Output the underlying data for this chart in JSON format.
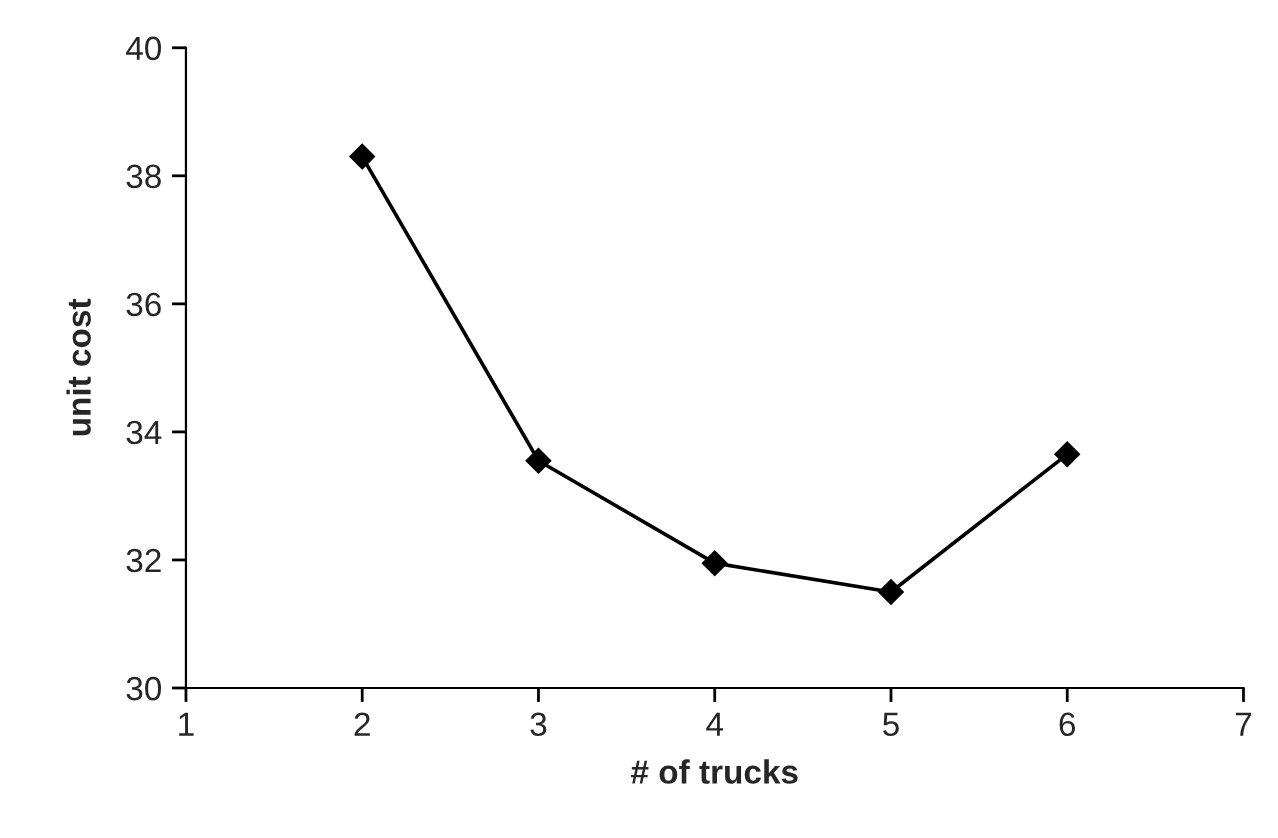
{
  "chart_data": {
    "type": "line",
    "xlabel": "# of trucks",
    "ylabel": "unit cost",
    "x": [
      2,
      3,
      4,
      5,
      6
    ],
    "series": [
      {
        "color": "#000000",
        "values": [
          38.3,
          33.55,
          31.95,
          31.5,
          33.65
        ]
      }
    ],
    "xlim": [
      1,
      7
    ],
    "xticks": [
      1,
      2,
      3,
      4,
      5,
      6,
      7
    ],
    "ylim": [
      30,
      40
    ],
    "yticks": [
      30,
      32,
      34,
      36,
      38,
      40
    ],
    "grid": false,
    "legend": false,
    "marker": "diamond",
    "line_style": "solid"
  }
}
